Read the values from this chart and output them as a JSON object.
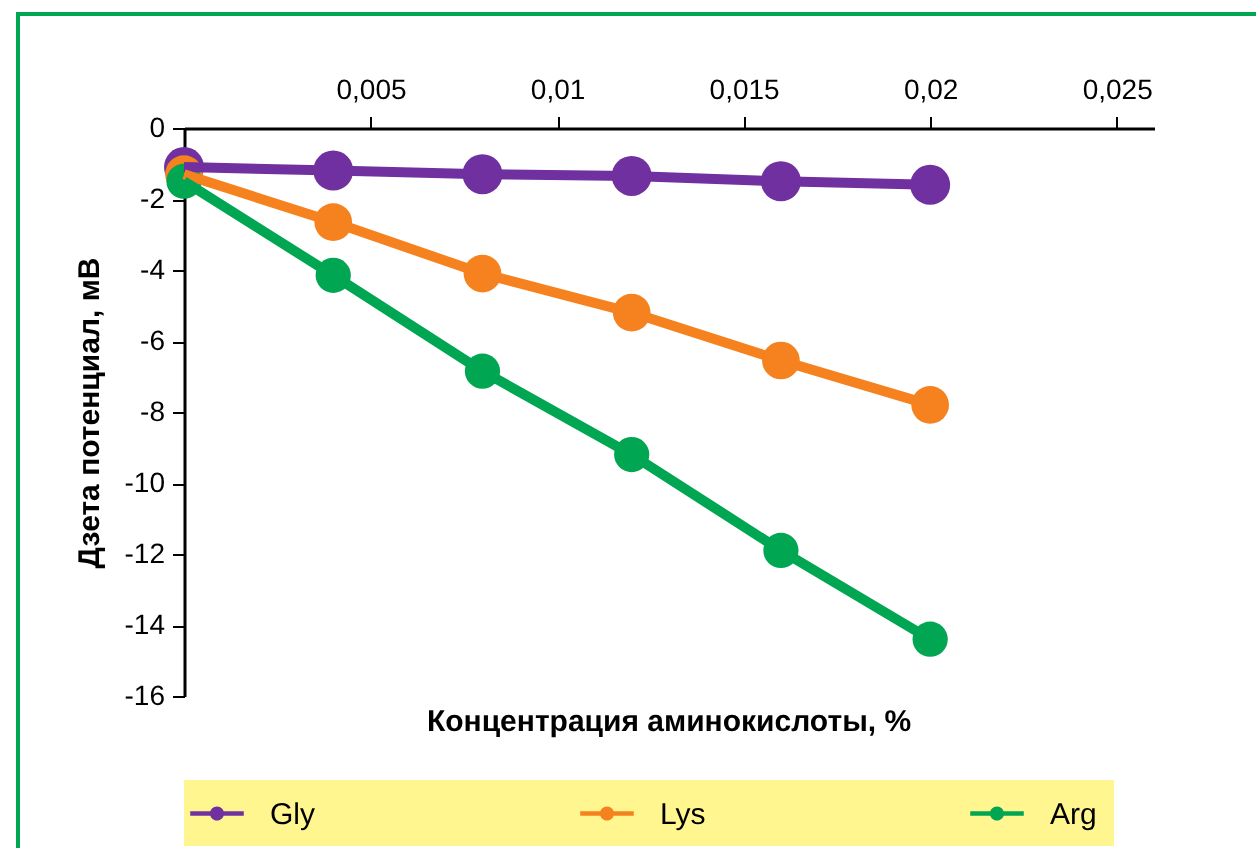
{
  "chart_data": {
    "type": "line",
    "xlabel": "Концентрация аминокислоты, %",
    "ylabel": "Дзета потенциал, мВ",
    "x": [
      0,
      0.004,
      0.008,
      0.012,
      0.016,
      0.02
    ],
    "series": [
      {
        "name": "Gly",
        "color": "#7030a0",
        "values": [
          -1.1,
          -1.2,
          -1.3,
          -1.35,
          -1.5,
          -1.6
        ]
      },
      {
        "name": "Lys",
        "color": "#f5821f",
        "values": [
          -1.3,
          -2.65,
          -4.1,
          -5.2,
          -6.55,
          -7.8
        ]
      },
      {
        "name": "Arg",
        "color": "#00a651",
        "values": [
          -1.5,
          -4.15,
          -6.85,
          -9.2,
          -11.9,
          -14.4
        ]
      }
    ],
    "xlim": [
      0,
      0.026
    ],
    "xticks": [
      {
        "value": 0.005,
        "label": "0,005"
      },
      {
        "value": 0.01,
        "label": "0,01"
      },
      {
        "value": 0.015,
        "label": "0,015"
      },
      {
        "value": 0.02,
        "label": "0,02"
      },
      {
        "value": 0.025,
        "label": "0,025"
      }
    ],
    "ylim": [
      -16,
      0
    ],
    "yticks": [
      {
        "value": -16,
        "label": "-16"
      },
      {
        "value": -14,
        "label": "-14"
      },
      {
        "value": -12,
        "label": "-12"
      },
      {
        "value": -10,
        "label": "-10"
      },
      {
        "value": -8,
        "label": "-8"
      },
      {
        "value": -6,
        "label": "-6"
      },
      {
        "value": -4,
        "label": "-4"
      },
      {
        "value": -2,
        "label": "-2"
      },
      {
        "value": 0,
        "label": "0"
      }
    ],
    "grid": false,
    "legend": "bottom",
    "marker": "circle",
    "line_style": "solid"
  }
}
